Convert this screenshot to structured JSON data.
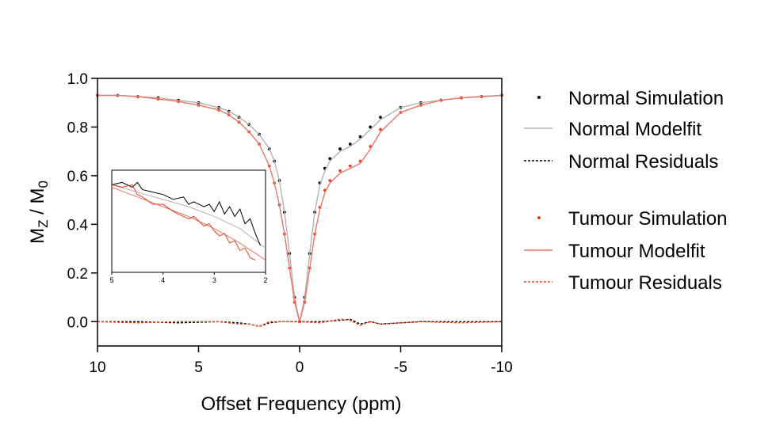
{
  "chart_data": {
    "type": "line",
    "xlabel": "Offset Frequency (ppm)",
    "ylabel": {
      "main": "M",
      "sub1": "Z",
      "mid": " / M",
      "sub2": "0"
    },
    "xlim": [
      10,
      -10
    ],
    "ylim": [
      -0.1,
      1.0
    ],
    "x_ticks": [
      10,
      5,
      0,
      -5,
      -10
    ],
    "x_tick_labels": [
      "10",
      "5",
      "0",
      "-5",
      "-10"
    ],
    "y_ticks": [
      0.0,
      0.2,
      0.4,
      0.6,
      0.8,
      1.0
    ],
    "y_tick_labels": [
      "0.0",
      "0.2",
      "0.4",
      "0.6",
      "0.8",
      "1.0"
    ],
    "legend_position": "right",
    "colors": {
      "normal": "#000000",
      "normal_fit": "#b3b3b3",
      "tumour": "#e8401c",
      "tumour_fit": "#e8766b"
    },
    "series": [
      {
        "name": "Normal Simulation",
        "style": "dots",
        "color": "#000000",
        "x": [
          10,
          9,
          8,
          7,
          6,
          5,
          4,
          3.5,
          3,
          2.5,
          2,
          1.5,
          1.25,
          1,
          0.75,
          0.5,
          0.25,
          0,
          -0.25,
          -0.5,
          -0.75,
          -1,
          -1.25,
          -1.5,
          -2,
          -2.5,
          -3,
          -3.5,
          -4,
          -5,
          -6,
          -7,
          -8,
          -9,
          -10
        ],
        "y": [
          0.93,
          0.93,
          0.925,
          0.92,
          0.91,
          0.9,
          0.88,
          0.865,
          0.84,
          0.81,
          0.77,
          0.71,
          0.66,
          0.58,
          0.45,
          0.28,
          0.1,
          0.0,
          0.1,
          0.28,
          0.45,
          0.57,
          0.63,
          0.67,
          0.71,
          0.73,
          0.76,
          0.8,
          0.84,
          0.88,
          0.9,
          0.91,
          0.92,
          0.925,
          0.93
        ]
      },
      {
        "name": "Normal Modelfit",
        "style": "line",
        "color": "#b3b3b3",
        "x": [
          10,
          9,
          8,
          7,
          6,
          5,
          4,
          3.5,
          3,
          2.5,
          2,
          1.5,
          1.25,
          1,
          0.75,
          0.5,
          0.25,
          0,
          -0.25,
          -0.5,
          -0.75,
          -1,
          -1.25,
          -1.5,
          -2,
          -2.5,
          -3,
          -3.5,
          -4,
          -5,
          -6,
          -7,
          -8,
          -9,
          -10
        ],
        "y": [
          0.93,
          0.93,
          0.925,
          0.92,
          0.91,
          0.9,
          0.88,
          0.865,
          0.84,
          0.81,
          0.77,
          0.71,
          0.66,
          0.58,
          0.45,
          0.28,
          0.1,
          0.0,
          0.1,
          0.28,
          0.45,
          0.56,
          0.62,
          0.66,
          0.7,
          0.72,
          0.75,
          0.79,
          0.83,
          0.88,
          0.9,
          0.91,
          0.92,
          0.925,
          0.93
        ]
      },
      {
        "name": "Normal Residuals",
        "style": "dashed",
        "color": "#000000",
        "x": [
          10,
          8,
          6,
          4,
          3,
          2.5,
          2,
          1.5,
          1,
          0,
          -1,
          -2,
          -2.5,
          -3,
          -3.5,
          -4,
          -6,
          -8,
          -10
        ],
        "y": [
          0.0,
          0.0,
          -0.005,
          0.0,
          -0.005,
          -0.01,
          -0.02,
          -0.005,
          0.0,
          0.0,
          0.0,
          0.005,
          0.01,
          -0.01,
          0.0,
          -0.01,
          0.0,
          0.0,
          0.0
        ]
      },
      {
        "name": "Tumour Simulation",
        "style": "dots",
        "color": "#e8401c",
        "x": [
          10,
          9,
          8,
          7,
          6,
          5,
          4,
          3.5,
          3,
          2.5,
          2,
          1.5,
          1.25,
          1,
          0.75,
          0.5,
          0.25,
          0,
          -0.25,
          -0.5,
          -0.75,
          -1,
          -1.25,
          -1.5,
          -2,
          -2.5,
          -3,
          -3.5,
          -4,
          -5,
          -6,
          -7,
          -8,
          -9,
          -10
        ],
        "y": [
          0.93,
          0.93,
          0.925,
          0.915,
          0.905,
          0.89,
          0.87,
          0.85,
          0.82,
          0.78,
          0.73,
          0.64,
          0.57,
          0.48,
          0.36,
          0.22,
          0.08,
          0.0,
          0.08,
          0.22,
          0.36,
          0.47,
          0.54,
          0.58,
          0.62,
          0.64,
          0.66,
          0.72,
          0.79,
          0.86,
          0.89,
          0.91,
          0.92,
          0.925,
          0.93
        ]
      },
      {
        "name": "Tumour Modelfit",
        "style": "line",
        "color": "#e8766b",
        "x": [
          10,
          9,
          8,
          7,
          6,
          5,
          4,
          3.5,
          3,
          2.5,
          2,
          1.5,
          1.25,
          1,
          0.75,
          0.5,
          0.25,
          0,
          -0.25,
          -0.5,
          -0.75,
          -1,
          -1.25,
          -1.5,
          -2,
          -2.5,
          -3,
          -3.5,
          -4,
          -5,
          -6,
          -7,
          -8,
          -9,
          -10
        ],
        "y": [
          0.93,
          0.93,
          0.925,
          0.915,
          0.905,
          0.89,
          0.87,
          0.85,
          0.82,
          0.78,
          0.73,
          0.64,
          0.57,
          0.48,
          0.36,
          0.22,
          0.08,
          0.0,
          0.08,
          0.22,
          0.36,
          0.46,
          0.53,
          0.57,
          0.61,
          0.63,
          0.65,
          0.71,
          0.78,
          0.86,
          0.89,
          0.91,
          0.92,
          0.925,
          0.93
        ]
      },
      {
        "name": "Tumour Residuals",
        "style": "dashed",
        "color": "#e8401c",
        "x": [
          10,
          8,
          6,
          4,
          3,
          2.5,
          2,
          1.5,
          1,
          0,
          -1,
          -2,
          -2.5,
          -3,
          -3.5,
          -4,
          -6,
          -8,
          -10
        ],
        "y": [
          0.0,
          -0.005,
          0.0,
          0.0,
          -0.01,
          -0.01,
          -0.02,
          0.0,
          0.0,
          0.0,
          -0.005,
          0.01,
          0.005,
          -0.015,
          0.0,
          -0.01,
          0.0,
          -0.005,
          0.0
        ]
      }
    ],
    "inset": {
      "xlim": [
        5,
        2
      ],
      "ylim": [
        0.72,
        0.93
      ],
      "x_ticks": [
        5,
        4,
        3,
        2
      ],
      "x_tick_labels": [
        "5",
        "4",
        "3",
        "2"
      ],
      "series": [
        {
          "color": "#b3b3b3",
          "style": "line",
          "x": [
            5,
            4.5,
            4,
            3.5,
            3,
            2.5,
            2
          ],
          "y": [
            0.9,
            0.885,
            0.87,
            0.855,
            0.835,
            0.81,
            0.77
          ]
        },
        {
          "color": "#e8766b",
          "style": "line",
          "x": [
            5,
            4.5,
            4,
            3.5,
            3,
            2.5,
            2
          ],
          "y": [
            0.895,
            0.875,
            0.855,
            0.835,
            0.81,
            0.78,
            0.745
          ]
        },
        {
          "color": "#000000",
          "style": "line",
          "x": [
            5,
            4.8,
            4.6,
            4.5,
            4.4,
            4.2,
            4.0,
            3.8,
            3.6,
            3.5,
            3.4,
            3.2,
            3.1,
            3.0,
            2.9,
            2.8,
            2.7,
            2.6,
            2.5,
            2.4,
            2.3,
            2.2,
            2.1
          ],
          "y": [
            0.9,
            0.905,
            0.895,
            0.905,
            0.89,
            0.885,
            0.88,
            0.87,
            0.875,
            0.86,
            0.865,
            0.855,
            0.86,
            0.845,
            0.865,
            0.84,
            0.855,
            0.835,
            0.85,
            0.82,
            0.83,
            0.8,
            0.775
          ]
        },
        {
          "color": "#e8401c",
          "style": "line",
          "x": [
            5,
            4.8,
            4.6,
            4.5,
            4.4,
            4.2,
            4.0,
            3.8,
            3.6,
            3.5,
            3.4,
            3.2,
            3.1,
            3.0,
            2.9,
            2.8,
            2.7,
            2.6,
            2.5,
            2.4,
            2.3,
            2.2
          ],
          "y": [
            0.9,
            0.895,
            0.9,
            0.88,
            0.875,
            0.86,
            0.86,
            0.845,
            0.835,
            0.83,
            0.835,
            0.815,
            0.82,
            0.805,
            0.795,
            0.8,
            0.78,
            0.785,
            0.765,
            0.77,
            0.75,
            0.745
          ]
        }
      ]
    }
  }
}
